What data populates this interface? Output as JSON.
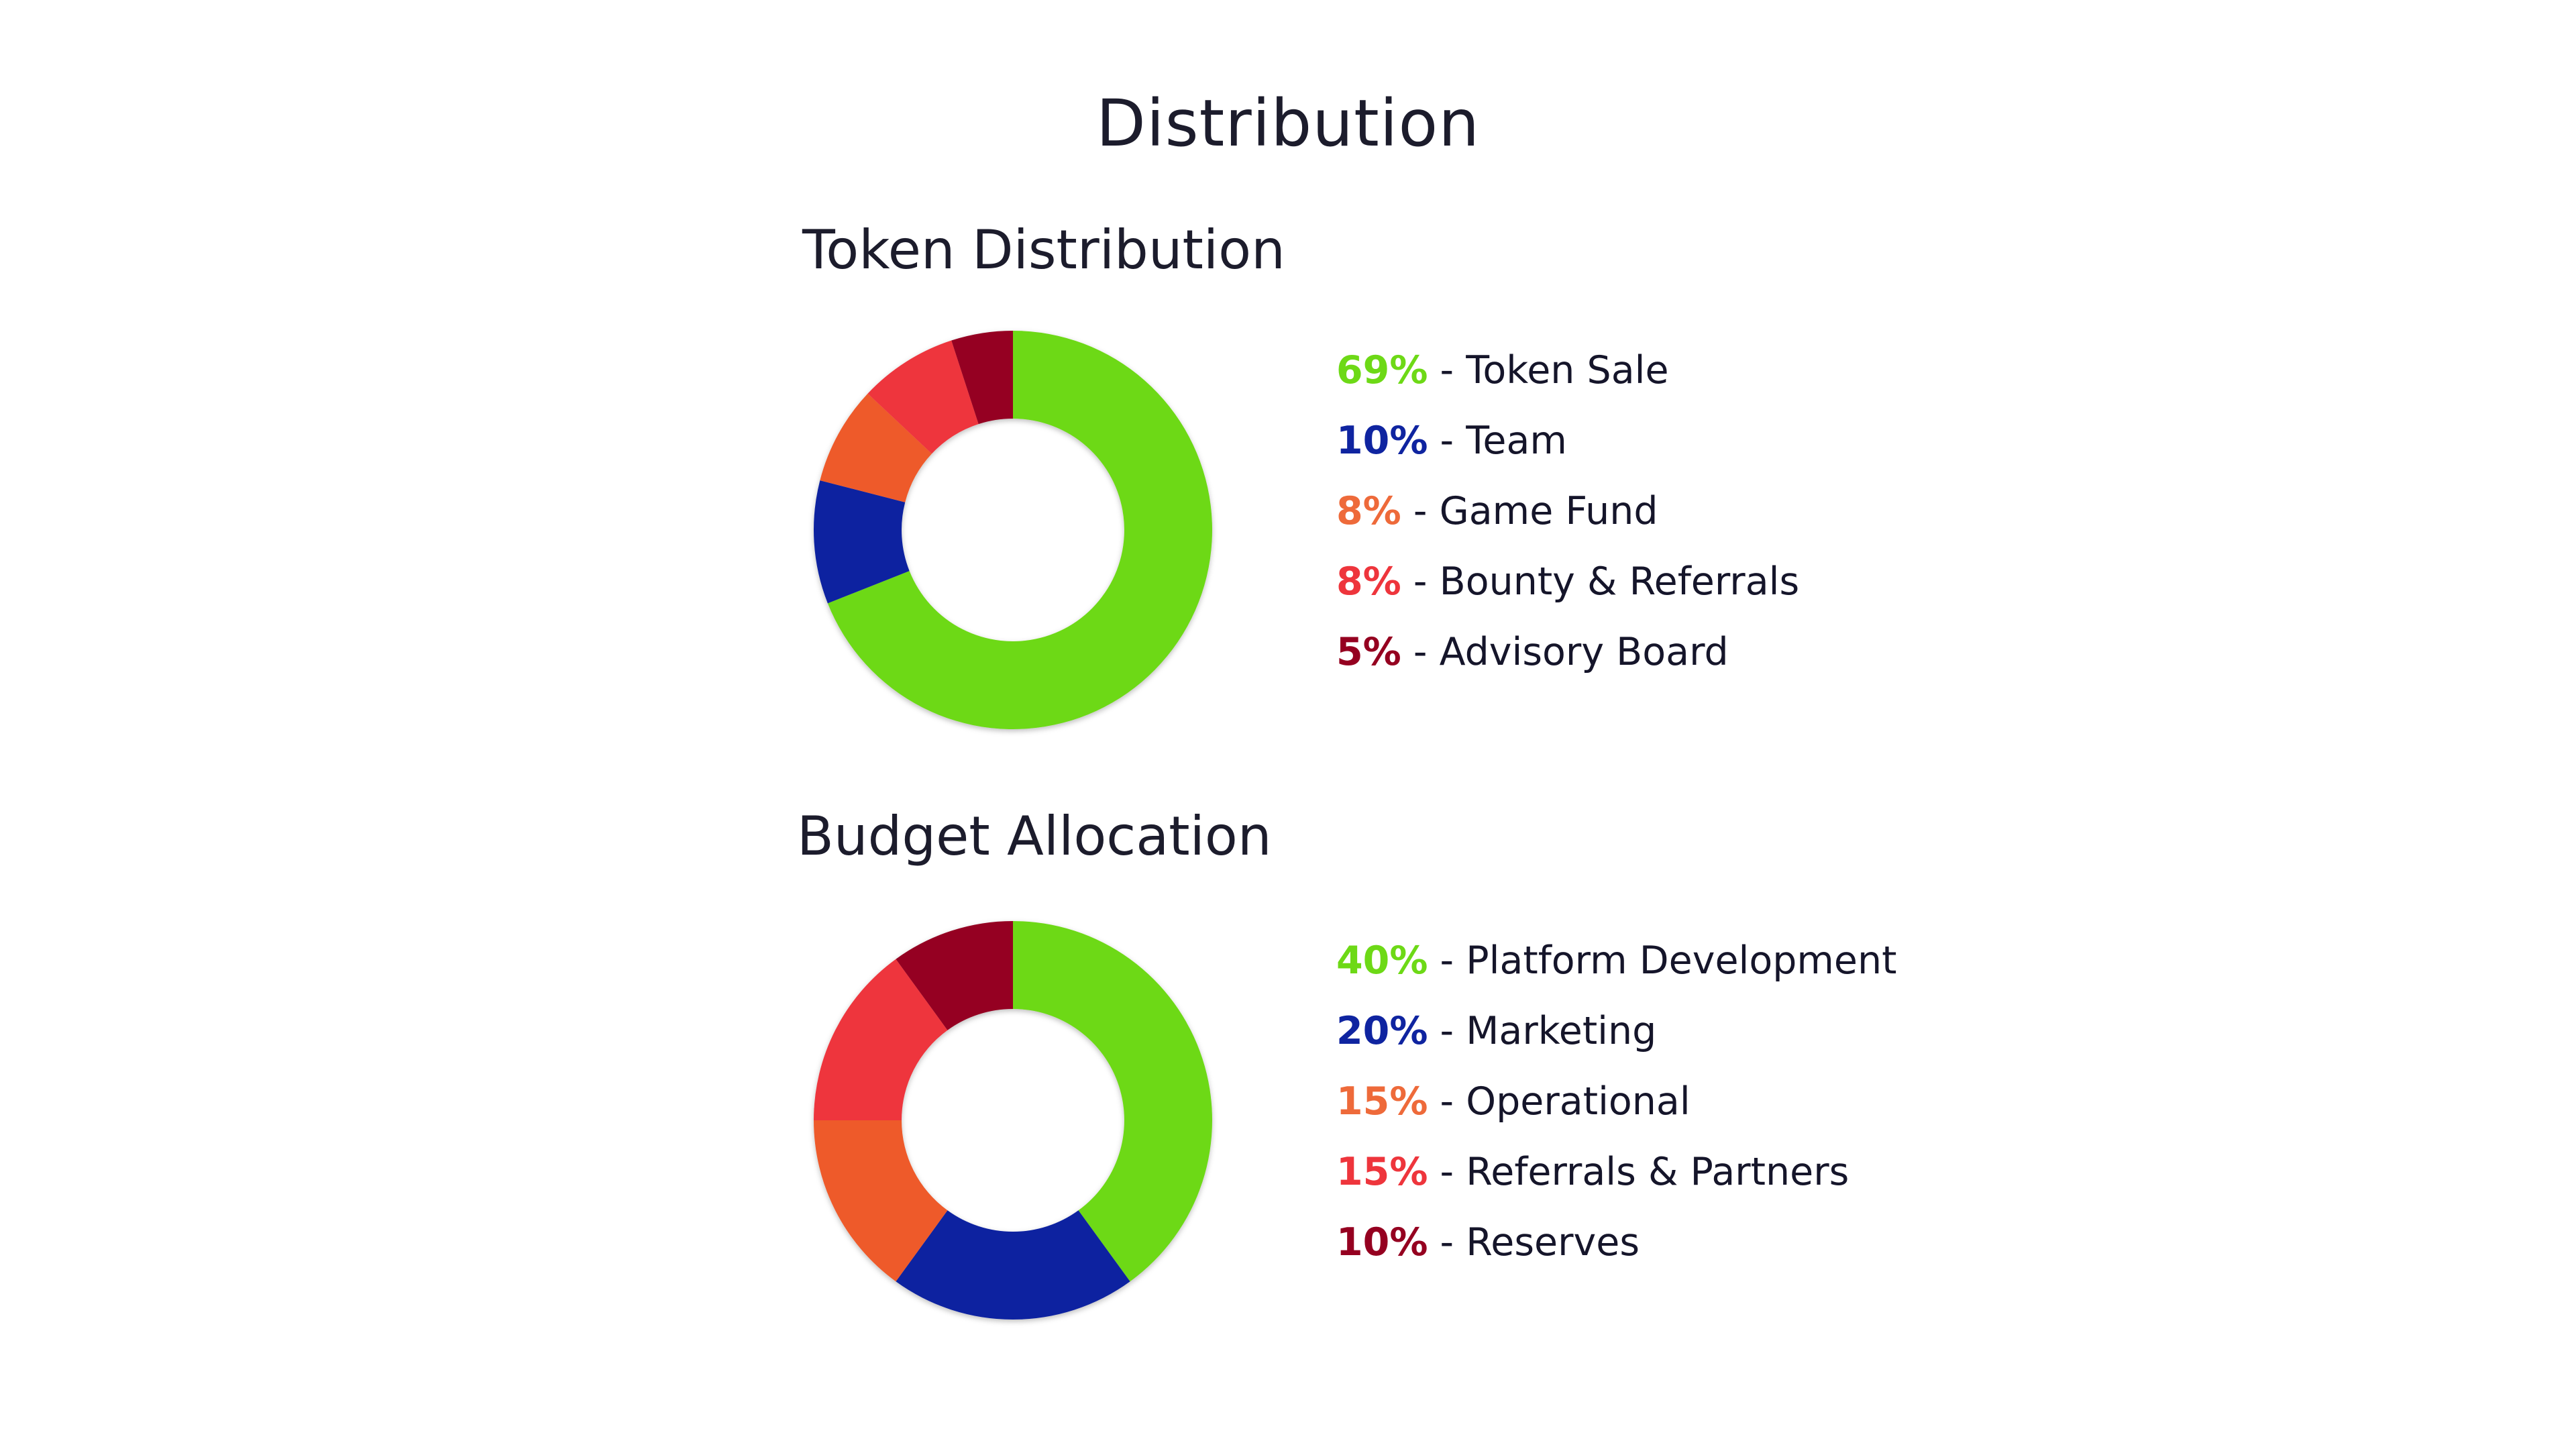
{
  "page": {
    "title": "Distribution"
  },
  "chart_data": [
    {
      "type": "pie",
      "title": "Token Distribution",
      "donut": true,
      "legend_position": "right",
      "slices": [
        {
          "label": "Token Sale",
          "pct_label": "69%",
          "value": 69,
          "color": "#6dd916"
        },
        {
          "label": "Team",
          "pct_label": "10%",
          "value": 10,
          "color": "#0f24a0"
        },
        {
          "label": "Game Fund",
          "pct_label": "8%",
          "value": 8,
          "color": "#ee5a2a"
        },
        {
          "label": "Bounty & Referrals",
          "pct_label": "8%",
          "value": 8,
          "color": "#ee353c"
        },
        {
          "label": "Advisory Board",
          "pct_label": "5%",
          "value": 5,
          "color": "#950020"
        }
      ]
    },
    {
      "type": "pie",
      "title": "Budget Allocation",
      "donut": true,
      "legend_position": "right",
      "slices": [
        {
          "label": "Platform Development",
          "pct_label": "40%",
          "value": 40,
          "color": "#6dd916"
        },
        {
          "label": "Marketing",
          "pct_label": "20%",
          "value": 20,
          "color": "#0f24a0"
        },
        {
          "label": "Operational",
          "pct_label": "15%",
          "value": 15,
          "color": "#ee5a2a"
        },
        {
          "label": "Referrals & Partners",
          "pct_label": "15%",
          "value": 15,
          "color": "#ee353c"
        },
        {
          "label": "Reserves",
          "pct_label": "10%",
          "value": 10,
          "color": "#950020"
        }
      ]
    }
  ],
  "legend_text_colors": [
    "#6dd916",
    "#0f24a0",
    "#ee6a3a",
    "#ee353c",
    "#950020"
  ]
}
